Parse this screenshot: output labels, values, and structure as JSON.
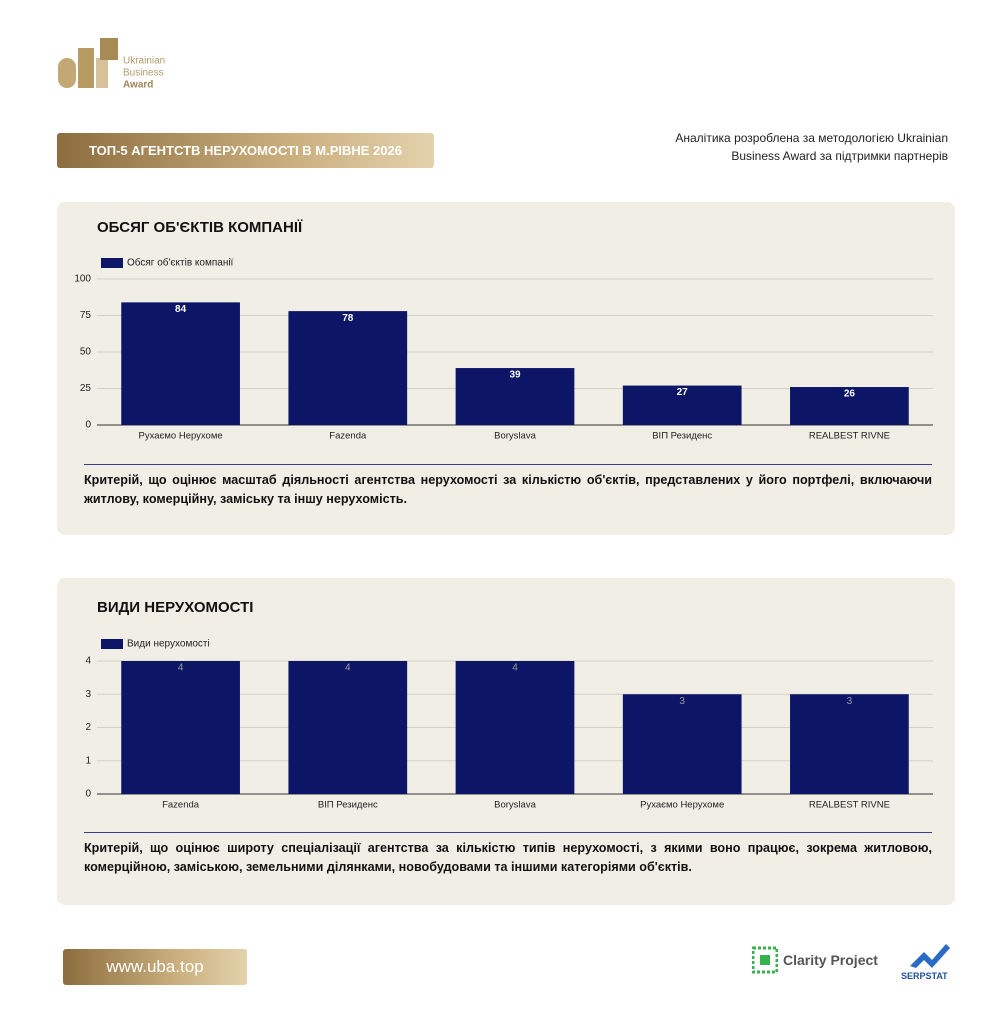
{
  "header": {
    "logo": [
      "Ukrainian",
      "Business",
      "Award"
    ],
    "title": "ТОП-5 АГЕНТСТВ НЕРУХОМОСТІ В М.РІВНЕ 2026",
    "note": "Аналітика розроблена за методологією Ukrainian Business Award за підтримки партнерів"
  },
  "chart_data": [
    {
      "type": "bar",
      "title": "ОБСЯГ ОБ'ЄКТІВ КОМПАНІЇ",
      "categories": [
        "Рухаємо Нерухоме",
        "Fazenda",
        "Boryslava",
        "ВІП Резиденс",
        "REALBEST RIVNE"
      ],
      "series": [
        {
          "name": "Обсяг об'єктів компанії",
          "color": "#0c1566",
          "values": [
            84,
            78,
            39,
            27,
            26
          ]
        }
      ],
      "ylim": [
        0,
        100
      ],
      "yticks": [
        0,
        25,
        50,
        75,
        100
      ],
      "grid": true,
      "label_color": "#ffffff",
      "description": "Критерій, що оцінює масштаб діяльності агентства нерухомості за кількістю об'єктів, представлених у його портфелі, включаючи житлову, комерційну, заміську та іншу нерухомість."
    },
    {
      "type": "bar",
      "title": "ВИДИ НЕРУХОМОСТІ",
      "categories": [
        "Fazenda",
        "ВІП Резиденс",
        "Boryslava",
        "Рухаємо Нерухоме",
        "REALBEST RIVNE"
      ],
      "series": [
        {
          "name": "Види нерухомості",
          "color": "#0c1566",
          "values": [
            4,
            4,
            4,
            3,
            3
          ]
        }
      ],
      "ylim": [
        0,
        4
      ],
      "yticks": [
        0,
        1,
        2,
        3,
        4
      ],
      "grid": true,
      "label_color": "#9a9a9a",
      "description": "Критерій, що оцінює широту спеціалізації агентства за кількістю типів нерухомості, з якими воно працює, зокрема житловою, комерційною, заміською, земельними ділянками, новобудовами та іншими категоріями об'єктів."
    }
  ],
  "footer": {
    "url": "www.uba.top",
    "partners": [
      "Clarity Project",
      "SERPSTAT"
    ]
  }
}
